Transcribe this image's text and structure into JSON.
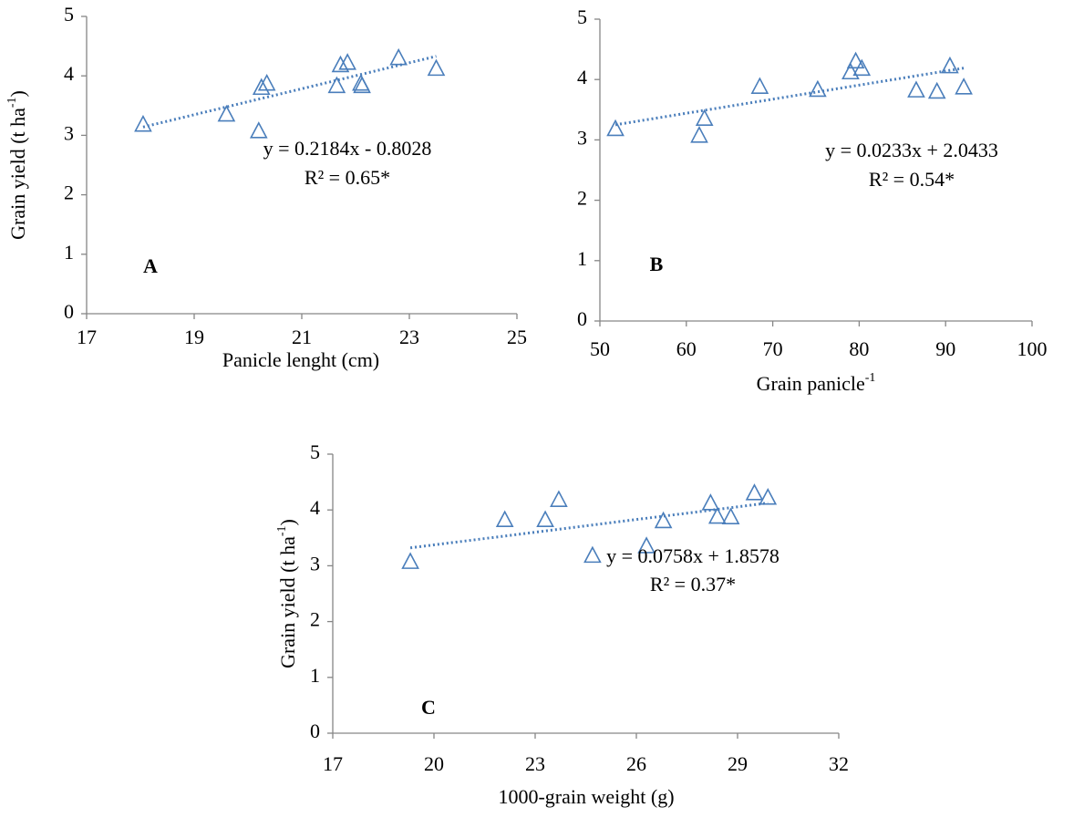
{
  "chart_data": [
    {
      "type": "scatter",
      "panel": "A",
      "color": "#4a7ebb",
      "x_label": "Panicle lenght (cm)",
      "y_label": "Grain yield (t ha",
      "y_label_sup": "-1",
      "y_label_end": ")",
      "equation": "y = 0.2184x - 0.8028",
      "r2": "R² = 0.65*",
      "trendline": {
        "slope": 0.2184,
        "intercept": -0.8028
      },
      "x": [
        18.05,
        19.6,
        20.2,
        20.25,
        20.35,
        21.65,
        21.72,
        21.85,
        22.1,
        22.12,
        22.8,
        23.5
      ],
      "y": [
        3.18,
        3.35,
        3.07,
        3.8,
        3.87,
        3.83,
        4.18,
        4.22,
        3.87,
        3.83,
        4.3,
        4.12
      ],
      "xlim": [
        17,
        25
      ],
      "xticks": [
        17,
        19,
        21,
        23,
        25
      ],
      "ylim": [
        0,
        5
      ],
      "yticks": [
        0,
        1,
        2,
        3,
        4,
        5
      ]
    },
    {
      "type": "scatter",
      "panel": "B",
      "color": "#4a7ebb",
      "x_label": "Grain panicle",
      "x_label_sup": "-1",
      "equation": "y = 0.0233x + 2.0433",
      "r2": "R² = 0.54*",
      "trendline": {
        "slope": 0.0233,
        "intercept": 2.0433
      },
      "x": [
        51.8,
        61.5,
        62.1,
        68.5,
        75.2,
        79,
        79.6,
        80.3,
        86.6,
        89,
        90.5,
        92.1
      ],
      "y": [
        3.18,
        3.07,
        3.35,
        3.88,
        3.83,
        4.12,
        4.3,
        4.18,
        3.82,
        3.8,
        4.22,
        3.87
      ],
      "xlim": [
        50,
        100
      ],
      "xticks": [
        50,
        60,
        70,
        80,
        90,
        100
      ],
      "ylim": [
        0,
        5
      ],
      "yticks": [
        0,
        1,
        2,
        3,
        4,
        5
      ]
    },
    {
      "type": "scatter",
      "panel": "C",
      "color": "#4a7ebb",
      "x_label": "1000-grain weight (g)",
      "y_label": "Grain yield (t ha",
      "y_label_sup": "-1",
      "y_label_end": ")",
      "equation": "y = 0.0758x + 1.8578",
      "r2": "R² = 0.37*",
      "trendline": {
        "slope": 0.0758,
        "intercept": 1.8578
      },
      "x": [
        19.3,
        22.1,
        23.3,
        23.7,
        24.7,
        26.3,
        26.8,
        28.2,
        28.4,
        28.8,
        29.5,
        29.9
      ],
      "y": [
        3.07,
        3.82,
        3.82,
        4.18,
        3.18,
        3.35,
        3.8,
        4.12,
        3.88,
        3.87,
        4.3,
        4.22
      ],
      "xlim": [
        17,
        32
      ],
      "xticks": [
        17,
        20,
        23,
        26,
        29,
        32
      ],
      "ylim": [
        0,
        5
      ],
      "yticks": [
        0,
        1,
        2,
        3,
        4,
        5
      ]
    }
  ]
}
